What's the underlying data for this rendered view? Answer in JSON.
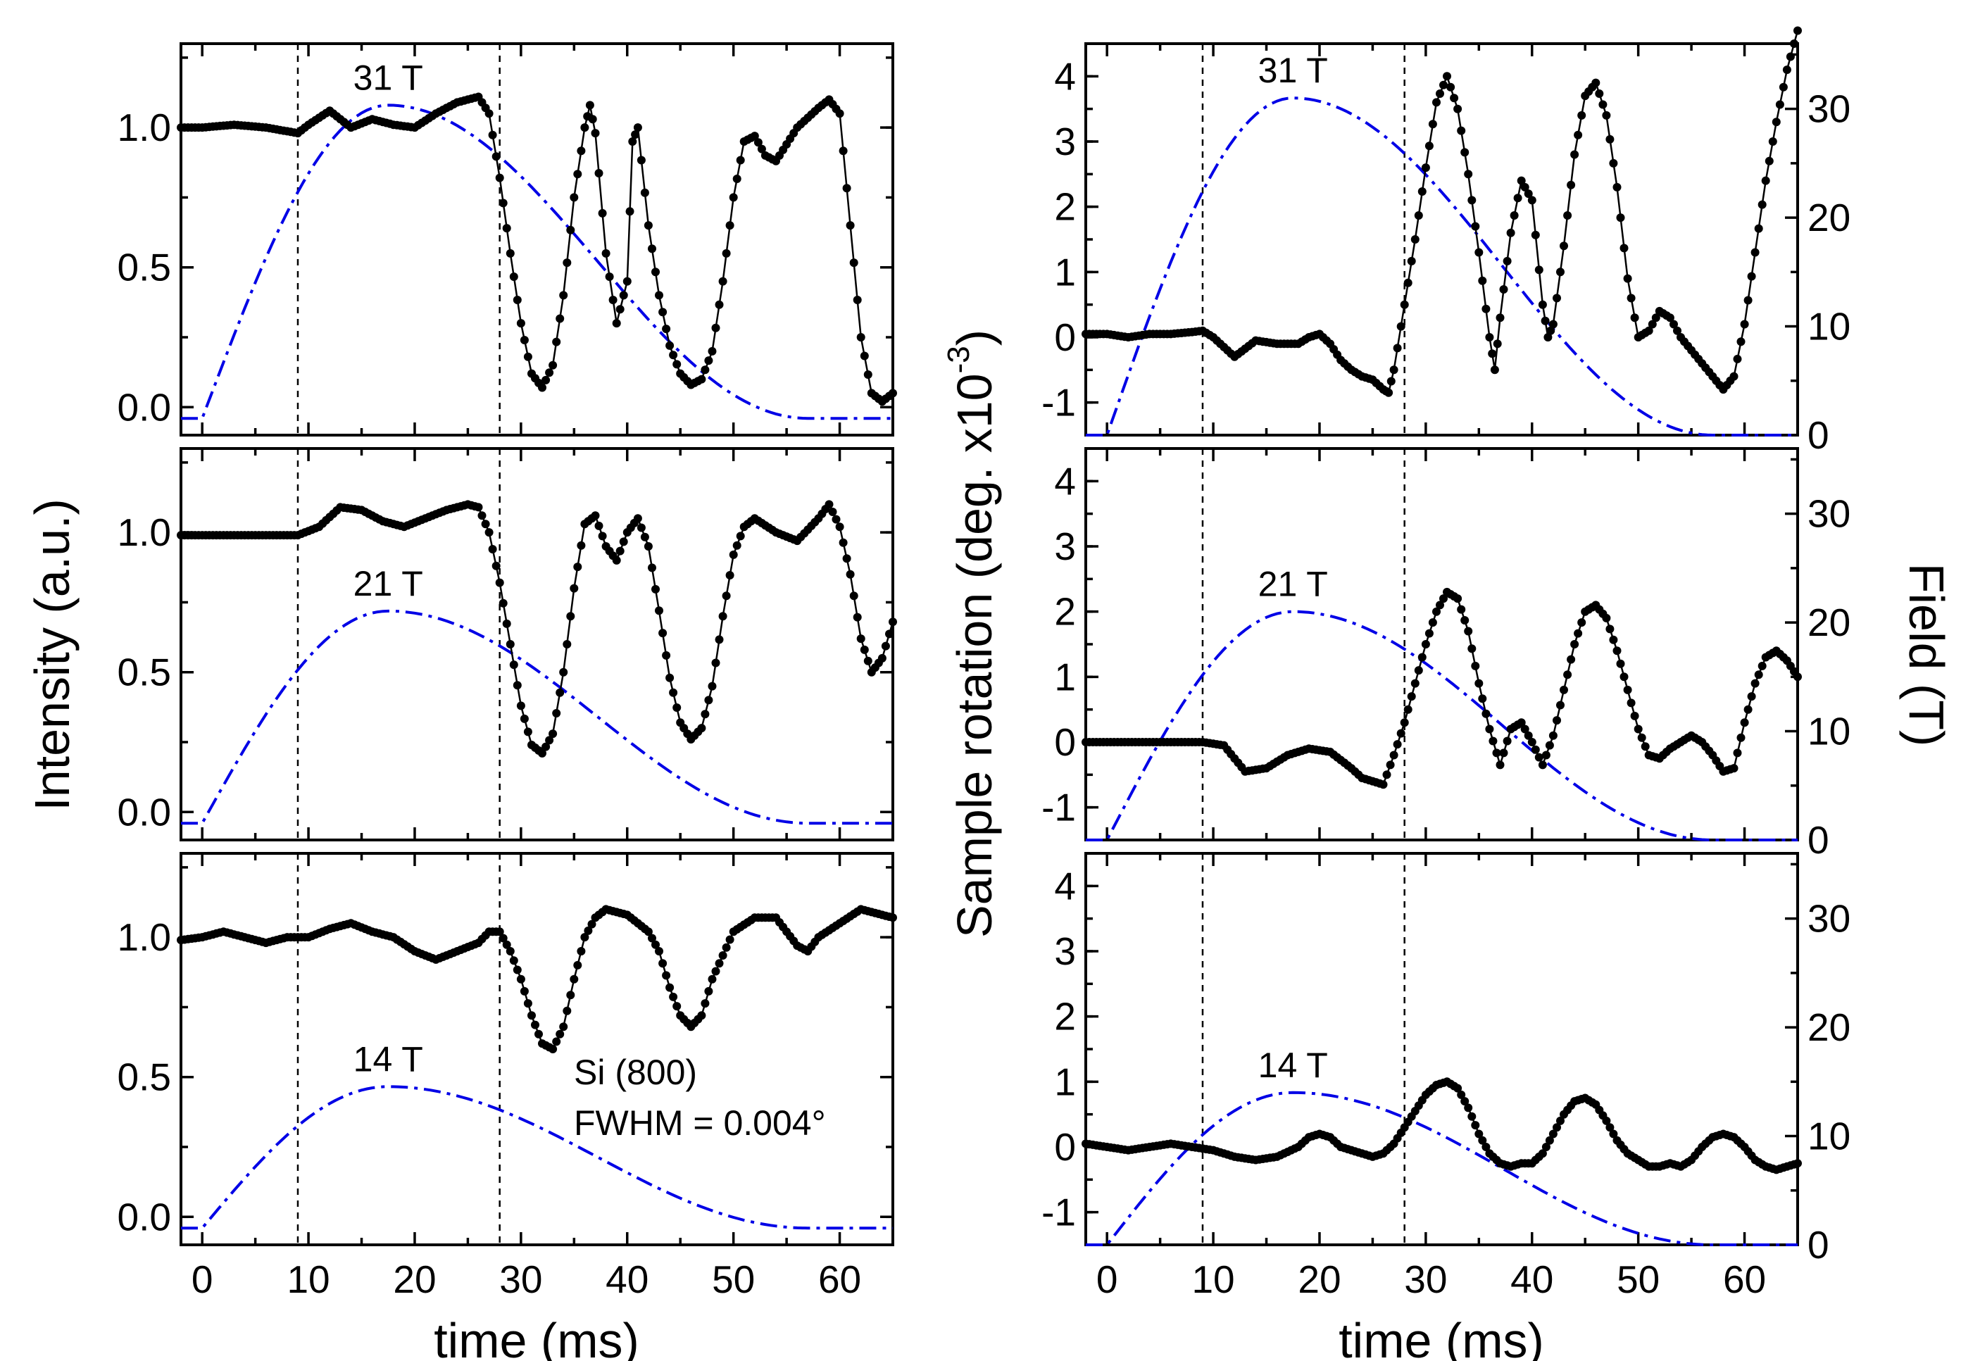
{
  "figure": {
    "left_ylabel": "Intensity (a.u.)",
    "right_inner_ylabel": "Sample rotation (deg. x10",
    "right_inner_ylabel_exp": "-3",
    "right_inner_ylabel_close": ")",
    "right_outer_ylabel": "Field (T)",
    "xlabel": "time (ms)",
    "sample_label": "Si (800)",
    "fwhm_label": "FWHM = 0.004°"
  },
  "colors": {
    "field_curve": "#0000e6",
    "data": "#000000"
  },
  "chart_data": [
    {
      "type": "line",
      "panel": "intensity-31T",
      "annotation": "31 T",
      "peak_field_T": 31,
      "xlim": [
        -2,
        65
      ],
      "ylim": [
        -0.1,
        1.3
      ],
      "xticks": [
        0,
        10,
        20,
        30,
        40,
        50,
        60
      ],
      "yticks": [
        0.0,
        0.5,
        1.0
      ],
      "ytick_labels": [
        "0.0",
        "0.5",
        "1.0"
      ],
      "vlines": [
        9,
        28
      ],
      "series": [
        {
          "x": [
            -2,
            0,
            3,
            6,
            9,
            10,
            12,
            14,
            16,
            18,
            20,
            22,
            24,
            26,
            27,
            28,
            29,
            30,
            31,
            32,
            33,
            34,
            35,
            36,
            36.5,
            37,
            38,
            39,
            40,
            40.5,
            41,
            42,
            43,
            44,
            45,
            46,
            47,
            48,
            49,
            50,
            51,
            52,
            53,
            54,
            56,
            58,
            59,
            60,
            61,
            62,
            63,
            64,
            65
          ],
          "y": [
            1.0,
            1.0,
            1.01,
            1.0,
            0.98,
            1.01,
            1.06,
            1.0,
            1.03,
            1.01,
            1.0,
            1.05,
            1.09,
            1.11,
            1.05,
            0.82,
            0.55,
            0.3,
            0.12,
            0.07,
            0.15,
            0.4,
            0.75,
            1.0,
            1.08,
            0.98,
            0.55,
            0.3,
            0.45,
            0.95,
            1.0,
            0.65,
            0.4,
            0.22,
            0.12,
            0.08,
            0.1,
            0.2,
            0.45,
            0.75,
            0.95,
            0.97,
            0.9,
            0.88,
            1.0,
            1.07,
            1.1,
            1.05,
            0.65,
            0.25,
            0.05,
            0.02,
            0.05
          ]
        }
      ]
    },
    {
      "type": "line",
      "panel": "intensity-21T",
      "annotation": "21 T",
      "peak_field_T": 21,
      "xlim": [
        -2,
        65
      ],
      "ylim": [
        -0.1,
        1.3
      ],
      "xticks": [
        0,
        10,
        20,
        30,
        40,
        50,
        60
      ],
      "yticks": [
        0.0,
        0.5,
        1.0
      ],
      "ytick_labels": [
        "0.0",
        "0.5",
        "1.0"
      ],
      "vlines": [
        9,
        28
      ],
      "series": [
        {
          "x": [
            -2,
            0,
            3,
            6,
            9,
            11,
            13,
            15,
            17,
            19,
            21,
            23,
            25,
            26,
            27,
            28,
            29,
            30,
            31,
            32,
            33,
            34,
            35,
            36,
            37,
            38,
            39,
            40,
            41,
            42,
            43,
            44,
            45,
            46,
            47,
            48,
            49,
            50,
            51,
            52,
            54,
            56,
            58,
            59,
            60,
            61,
            62,
            63,
            64,
            65
          ],
          "y": [
            0.99,
            0.99,
            0.99,
            0.99,
            0.99,
            1.02,
            1.09,
            1.08,
            1.04,
            1.02,
            1.05,
            1.08,
            1.1,
            1.09,
            1.0,
            0.82,
            0.6,
            0.38,
            0.24,
            0.21,
            0.28,
            0.5,
            0.8,
            1.03,
            1.06,
            0.95,
            0.9,
            1.0,
            1.05,
            0.95,
            0.72,
            0.48,
            0.32,
            0.26,
            0.3,
            0.45,
            0.7,
            0.92,
            1.02,
            1.05,
            1.0,
            0.97,
            1.05,
            1.1,
            1.02,
            0.85,
            0.62,
            0.5,
            0.55,
            0.68
          ]
        }
      ]
    },
    {
      "type": "line",
      "panel": "intensity-14T",
      "annotation": "14 T",
      "peak_field_T": 14,
      "xlim": [
        -2,
        65
      ],
      "ylim": [
        -0.1,
        1.3
      ],
      "xticks": [
        0,
        10,
        20,
        30,
        40,
        50,
        60
      ],
      "yticks": [
        0.0,
        0.5,
        1.0
      ],
      "ytick_labels": [
        "0.0",
        "0.5",
        "1.0"
      ],
      "vlines": [
        9,
        28
      ],
      "series": [
        {
          "x": [
            -2,
            0,
            2,
            4,
            6,
            8,
            10,
            12,
            14,
            16,
            18,
            20,
            22,
            24,
            26,
            27,
            28,
            29,
            30,
            31,
            32,
            33,
            34,
            35,
            36,
            37,
            38,
            40,
            42,
            43,
            44,
            45,
            46,
            47,
            48,
            50,
            52,
            54,
            55,
            56,
            57,
            58,
            60,
            62,
            63,
            64,
            65
          ],
          "y": [
            0.99,
            1.0,
            1.02,
            1.0,
            0.98,
            1.0,
            1.0,
            1.03,
            1.05,
            1.02,
            1.0,
            0.95,
            0.92,
            0.95,
            0.98,
            1.02,
            1.02,
            0.95,
            0.85,
            0.72,
            0.62,
            0.6,
            0.68,
            0.85,
            1.0,
            1.07,
            1.1,
            1.08,
            1.02,
            0.95,
            0.82,
            0.72,
            0.68,
            0.72,
            0.85,
            1.02,
            1.07,
            1.07,
            1.02,
            0.97,
            0.95,
            1.0,
            1.05,
            1.1,
            1.09,
            1.08,
            1.07
          ]
        }
      ]
    },
    {
      "type": "line",
      "panel": "rotation-31T",
      "annotation": "31 T",
      "peak_field_T": 31,
      "xlim": [
        -2,
        65
      ],
      "ylim": [
        -1.5,
        4.5
      ],
      "y2lim": [
        0,
        36
      ],
      "xticks": [
        0,
        10,
        20,
        30,
        40,
        50,
        60
      ],
      "yticks": [
        -1,
        0,
        1,
        2,
        3,
        4
      ],
      "ytick_labels": [
        "-1",
        "0",
        "1",
        "2",
        "3",
        "4"
      ],
      "y2ticks": [
        0,
        10,
        20,
        30
      ],
      "y2tick_labels": [
        "0",
        "10",
        "20",
        "30"
      ],
      "vlines": [
        9,
        28
      ],
      "series": [
        {
          "x": [
            -2,
            0,
            2,
            4,
            6,
            8,
            9,
            10,
            11,
            12,
            14,
            16,
            18,
            19,
            20,
            21,
            22,
            23,
            24,
            25,
            26,
            26.5,
            27,
            28,
            29,
            30,
            31,
            32,
            33,
            34,
            35,
            36,
            36.5,
            37,
            38,
            39,
            40,
            41,
            41.5,
            42,
            43,
            44,
            45,
            46,
            47,
            48,
            49,
            50,
            51,
            52,
            53,
            54,
            55,
            56,
            57,
            58,
            59,
            60,
            61,
            62,
            63,
            64,
            65
          ],
          "y": [
            0.05,
            0.05,
            0.0,
            0.05,
            0.05,
            0.08,
            0.1,
            0.0,
            -0.15,
            -0.3,
            -0.05,
            -0.1,
            -0.1,
            0.0,
            0.05,
            -0.1,
            -0.35,
            -0.5,
            -0.6,
            -0.65,
            -0.8,
            -0.85,
            -0.5,
            0.5,
            1.5,
            2.6,
            3.6,
            4.0,
            3.5,
            2.5,
            1.3,
            0.0,
            -0.5,
            0.3,
            1.6,
            2.4,
            2.1,
            0.5,
            0.0,
            0.2,
            1.4,
            2.8,
            3.7,
            3.9,
            3.4,
            2.3,
            0.9,
            0.0,
            0.1,
            0.4,
            0.3,
            0.0,
            -0.2,
            -0.4,
            -0.6,
            -0.8,
            -0.6,
            0.2,
            1.3,
            2.4,
            3.3,
            4.1,
            4.7
          ]
        }
      ]
    },
    {
      "type": "line",
      "panel": "rotation-21T",
      "annotation": "21 T",
      "peak_field_T": 21,
      "xlim": [
        -2,
        65
      ],
      "ylim": [
        -1.5,
        4.5
      ],
      "y2lim": [
        0,
        36
      ],
      "xticks": [
        0,
        10,
        20,
        30,
        40,
        50,
        60
      ],
      "yticks": [
        -1,
        0,
        1,
        2,
        3,
        4
      ],
      "ytick_labels": [
        "-1",
        "0",
        "1",
        "2",
        "3",
        "4"
      ],
      "y2ticks": [
        0,
        10,
        20,
        30
      ],
      "y2tick_labels": [
        "0",
        "10",
        "20",
        "30"
      ],
      "vlines": [
        9,
        28
      ],
      "series": [
        {
          "x": [
            -2,
            0,
            3,
            6,
            9,
            11,
            13,
            15,
            17,
            19,
            21,
            23,
            24,
            25,
            26,
            27,
            28,
            29,
            30,
            31,
            32,
            33,
            34,
            35,
            36,
            37,
            38,
            39,
            40,
            41,
            42,
            43,
            44,
            45,
            46,
            47,
            48,
            49,
            50,
            51,
            52,
            53,
            54,
            55,
            56,
            57,
            58,
            59,
            60,
            61,
            62,
            63,
            64,
            65
          ],
          "y": [
            0.0,
            0.0,
            0.0,
            0.0,
            0.0,
            -0.05,
            -0.45,
            -0.4,
            -0.2,
            -0.1,
            -0.15,
            -0.4,
            -0.55,
            -0.6,
            -0.65,
            -0.2,
            0.3,
            0.9,
            1.5,
            2.0,
            2.3,
            2.2,
            1.7,
            0.9,
            0.2,
            -0.35,
            0.2,
            0.3,
            0.0,
            -0.35,
            0.1,
            0.8,
            1.5,
            2.0,
            2.1,
            1.9,
            1.4,
            0.8,
            0.2,
            -0.2,
            -0.25,
            -0.1,
            0.0,
            0.1,
            0.0,
            -0.2,
            -0.45,
            -0.4,
            0.3,
            0.9,
            1.3,
            1.4,
            1.25,
            1.0
          ]
        }
      ]
    },
    {
      "type": "line",
      "panel": "rotation-14T",
      "annotation": "14 T",
      "peak_field_T": 14,
      "xlim": [
        -2,
        65
      ],
      "ylim": [
        -1.5,
        4.5
      ],
      "y2lim": [
        0,
        36
      ],
      "xticks": [
        0,
        10,
        20,
        30,
        40,
        50,
        60
      ],
      "yticks": [
        -1,
        0,
        1,
        2,
        3,
        4
      ],
      "ytick_labels": [
        "-1",
        "0",
        "1",
        "2",
        "3",
        "4"
      ],
      "y2ticks": [
        0,
        10,
        20,
        30
      ],
      "y2tick_labels": [
        "0",
        "10",
        "20",
        "30"
      ],
      "vlines": [
        9,
        28
      ],
      "series": [
        {
          "x": [
            -2,
            0,
            2,
            4,
            6,
            8,
            10,
            12,
            14,
            16,
            18,
            19,
            20,
            21,
            22,
            23,
            24,
            25,
            26,
            27,
            28,
            29,
            30,
            31,
            32,
            33,
            34,
            35,
            36,
            37,
            38,
            39,
            40,
            41,
            42,
            43,
            44,
            45,
            46,
            47,
            48,
            49,
            50,
            51,
            52,
            53,
            54,
            55,
            56,
            57,
            58,
            59,
            60,
            61,
            62,
            63,
            64,
            65
          ],
          "y": [
            0.05,
            0.0,
            -0.05,
            0.0,
            0.05,
            0.0,
            -0.05,
            -0.15,
            -0.2,
            -0.15,
            0.0,
            0.15,
            0.2,
            0.15,
            0.0,
            -0.05,
            -0.1,
            -0.15,
            -0.1,
            0.05,
            0.3,
            0.55,
            0.8,
            0.95,
            1.0,
            0.9,
            0.6,
            0.2,
            -0.1,
            -0.25,
            -0.3,
            -0.25,
            -0.25,
            -0.1,
            0.2,
            0.5,
            0.7,
            0.75,
            0.65,
            0.4,
            0.1,
            -0.1,
            -0.2,
            -0.3,
            -0.3,
            -0.25,
            -0.3,
            -0.2,
            0.0,
            0.15,
            0.2,
            0.15,
            0.0,
            -0.2,
            -0.3,
            -0.35,
            -0.3,
            -0.25
          ]
        }
      ]
    }
  ]
}
